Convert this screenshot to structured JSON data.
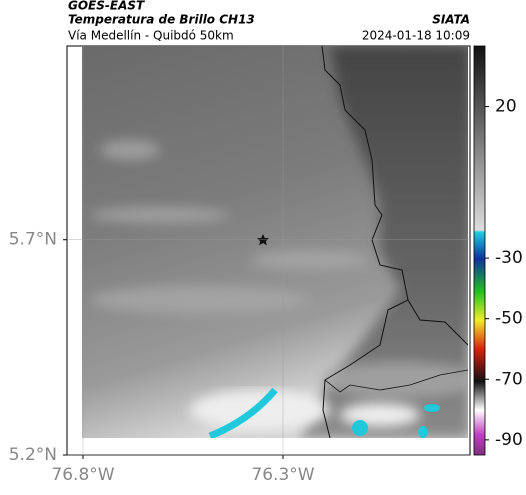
{
  "header": {
    "title": "GOES-EAST",
    "subtitle": "Temperatura de Brillo CH13",
    "location": "Vía Medellín - Quibdó 50km",
    "source": "SIATA",
    "datetime": "2024-01-18 10:09"
  },
  "map": {
    "xlim": [
      -76.84,
      -75.8325
    ],
    "ylim": [
      5.2,
      6.15
    ],
    "xticks": [
      {
        "value": -76.8,
        "label": "76.8°W"
      },
      {
        "value": -76.3,
        "label": "76.3°W"
      }
    ],
    "yticks": [
      {
        "value": 5.2,
        "label": "5.2°N"
      },
      {
        "value": 5.7,
        "label": "5.7°N"
      }
    ]
  },
  "colorbar": {
    "lim": [
      -95,
      40
    ],
    "ticks": [
      20,
      -30,
      -50,
      -70,
      -90
    ]
  }
}
